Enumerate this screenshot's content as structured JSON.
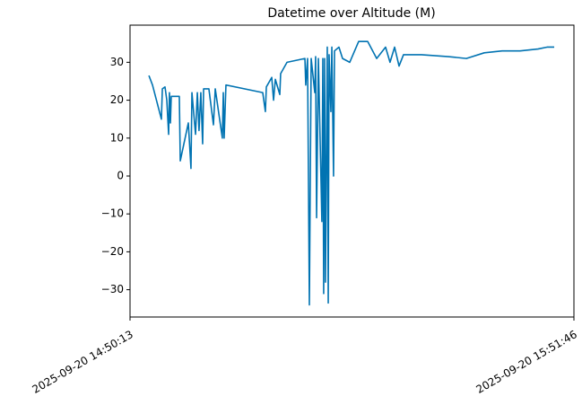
{
  "chart_data": {
    "type": "line",
    "title": "Datetime over Altitude (M)",
    "x": [
      "2025-09-20 14:52:50",
      "2025-09-20 14:53:20",
      "2025-09-20 14:54:34",
      "2025-09-20 14:54:42",
      "2025-09-20 14:55:04",
      "2025-09-20 14:55:19",
      "2025-09-20 14:55:34",
      "2025-09-20 14:55:41",
      "2025-09-20 14:55:49",
      "2025-09-20 14:55:56",
      "2025-09-20 14:56:19",
      "2025-09-20 14:57:03",
      "2025-09-20 14:57:11",
      "2025-09-20 14:58:18",
      "2025-09-20 14:58:40",
      "2025-09-20 14:58:48",
      "2025-09-20 14:59:18",
      "2025-09-20 14:59:33",
      "2025-09-20 14:59:47",
      "2025-09-20 15:00:02",
      "2025-09-20 15:00:17",
      "2025-09-20 15:00:25",
      "2025-09-20 15:01:09",
      "2025-09-20 15:01:47",
      "2025-09-20 15:02:02",
      "2025-09-20 15:03:01",
      "2025-09-20 15:03:09",
      "2025-09-20 15:03:16",
      "2025-09-20 15:03:31",
      "2025-09-20 15:08:37",
      "2025-09-20 15:08:59",
      "2025-09-20 15:09:07",
      "2025-09-20 15:09:52",
      "2025-09-20 15:10:07",
      "2025-09-20 15:10:22",
      "2025-09-20 15:10:59",
      "2025-09-20 15:11:06",
      "2025-09-20 15:11:59",
      "2025-09-20 15:14:28",
      "2025-09-20 15:14:35",
      "2025-09-20 15:14:50",
      "2025-09-20 15:15:05",
      "2025-09-20 15:15:20",
      "2025-09-20 15:15:50",
      "2025-09-20 15:15:57",
      "2025-09-20 15:16:05",
      "2025-09-20 15:16:20",
      "2025-09-20 15:16:49",
      "2025-09-20 15:16:57",
      "2025-09-20 15:17:04",
      "2025-09-20 15:17:12",
      "2025-09-20 15:17:19",
      "2025-09-20 15:17:34",
      "2025-09-20 15:17:42",
      "2025-09-20 15:17:49",
      "2025-09-20 15:18:04",
      "2025-09-20 15:18:12",
      "2025-09-20 15:18:26",
      "2025-09-20 15:18:34",
      "2025-09-20 15:19:11",
      "2025-09-20 15:19:41",
      "2025-09-20 15:20:41",
      "2025-09-20 15:21:55",
      "2025-09-20 15:23:10",
      "2025-09-20 15:24:25",
      "2025-09-20 15:25:39",
      "2025-09-20 15:26:16",
      "2025-09-20 15:26:54",
      "2025-09-20 15:27:31",
      "2025-09-20 15:28:08",
      "2025-09-20 15:30:38",
      "2025-09-20 15:34:21",
      "2025-09-20 15:36:51",
      "2025-09-20 15:39:20",
      "2025-09-20 15:41:49",
      "2025-09-20 15:44:18",
      "2025-09-20 15:46:47",
      "2025-09-20 15:48:02",
      "2025-09-20 15:49:02"
    ],
    "values": [
      26.5,
      24,
      15,
      23,
      23.5,
      20,
      11,
      22,
      14,
      21,
      21,
      21,
      4,
      14,
      2,
      22,
      11,
      22,
      12,
      22,
      8.5,
      23,
      23,
      13.5,
      23,
      10,
      22,
      10,
      24,
      22,
      17,
      23.5,
      26,
      20,
      25.5,
      21.5,
      27,
      30,
      31,
      24,
      31,
      -34,
      31,
      22,
      31.5,
      -11,
      31,
      -12,
      31,
      -31,
      31,
      -28,
      34,
      -33.5,
      32,
      17,
      34,
      0,
      33,
      34,
      31,
      30,
      35.5,
      35.5,
      31,
      34,
      30,
      34,
      29,
      32,
      32,
      31.5,
      31,
      32.5,
      33,
      33,
      33.5,
      34,
      34
    ],
    "color": "#0173b2",
    "xlim": [
      "2025-09-20 14:50:13",
      "2025-09-20 15:51:46"
    ],
    "xticks": [
      "2025-09-20 14:50:13",
      "2025-09-20 15:51:46"
    ],
    "ylim": [
      -37.2,
      39.8
    ],
    "yticks": [
      {
        "value": -30,
        "label": "−30"
      },
      {
        "value": -20,
        "label": "−20"
      },
      {
        "value": -10,
        "label": "−10"
      },
      0,
      10,
      20,
      30
    ]
  }
}
